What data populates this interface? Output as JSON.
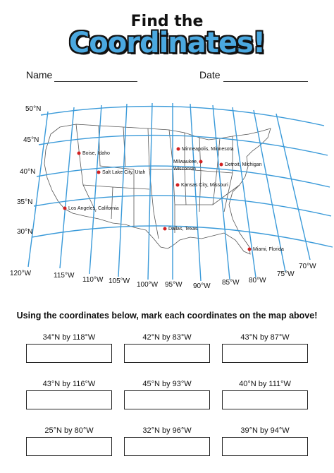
{
  "header": {
    "title_line1": "Find the",
    "title_line2": "Coordinates!"
  },
  "fields": {
    "name_label": "Name",
    "date_label": "Date"
  },
  "map": {
    "latitudes": [
      "50°N",
      "45°N",
      "40°N",
      "35°N",
      "30°N"
    ],
    "longitudes": [
      "120°W",
      "115°W",
      "110°W",
      "105°W",
      "100°W",
      "95°W",
      "90°W",
      "85°W",
      "80°W",
      "75°W",
      "70°W"
    ],
    "cities": [
      {
        "name": "Boise, Idaho"
      },
      {
        "name": "Minneapolis, Minnesota"
      },
      {
        "name": "Milwaukee, Wisconsin"
      },
      {
        "name": "Detroit, Michigan"
      },
      {
        "name": "Salt Lake City, Utah"
      },
      {
        "name": "Kansas City, Missouri"
      },
      {
        "name": "Los Angeles, California"
      },
      {
        "name": "Dallas, Texas"
      },
      {
        "name": "Miami, Florida"
      }
    ],
    "grid_color": "#3a9ad9",
    "dot_color": "#d32020"
  },
  "instructions": "Using the coordinates below, mark each coordinates on the map above!",
  "coordinates": [
    "34°N by 118°W",
    "42°N by 83°W",
    "43°N by 87°W",
    "43°N by 116°W",
    "45°N by 93°W",
    "40°N by 111°W",
    "25°N by 80°W",
    "32°N by 96°W",
    "39°N by 94°W"
  ]
}
